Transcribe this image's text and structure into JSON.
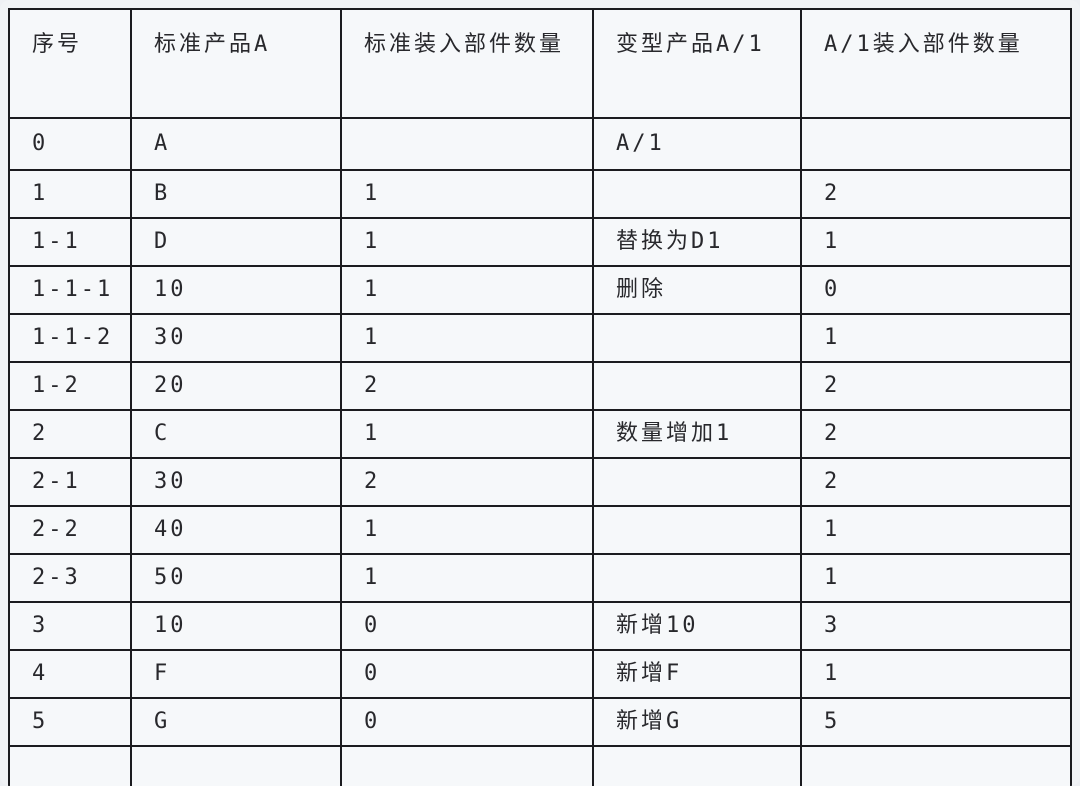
{
  "table": {
    "columns": [
      {
        "label": "序号"
      },
      {
        "label": "标准产品A"
      },
      {
        "label": "标准装入部件数量"
      },
      {
        "label": "变型产品A/1"
      },
      {
        "label": "A/1装入部件数量"
      }
    ],
    "rows": [
      [
        "0",
        "A",
        "",
        "A/1",
        ""
      ],
      [
        "1",
        "B",
        "1",
        "",
        "2"
      ],
      [
        "1-1",
        "D",
        "1",
        "替换为D1",
        "1"
      ],
      [
        "1-1-1",
        "10",
        "1",
        "删除",
        "0"
      ],
      [
        "1-1-2",
        "30",
        "1",
        "",
        "1"
      ],
      [
        "1-2",
        "20",
        "2",
        "",
        "2"
      ],
      [
        "2",
        "C",
        "1",
        "数量增加1",
        "2"
      ],
      [
        "2-1",
        "30",
        "2",
        "",
        "2"
      ],
      [
        "2-2",
        "40",
        "1",
        "",
        "1"
      ],
      [
        "2-3",
        "50",
        "1",
        "",
        "1"
      ],
      [
        "3",
        "10",
        "0",
        "新增10",
        "3"
      ],
      [
        "4",
        "F",
        "0",
        "新增F",
        "1"
      ],
      [
        "5",
        "G",
        "0",
        "新增G",
        "5"
      ],
      [
        "",
        "",
        "",
        "",
        ""
      ]
    ]
  },
  "colors": {
    "grid_border": "#1b1b1f",
    "text": "#28282c",
    "cell_background": "#f6f8fa",
    "page_background": "#f1f3f6"
  }
}
